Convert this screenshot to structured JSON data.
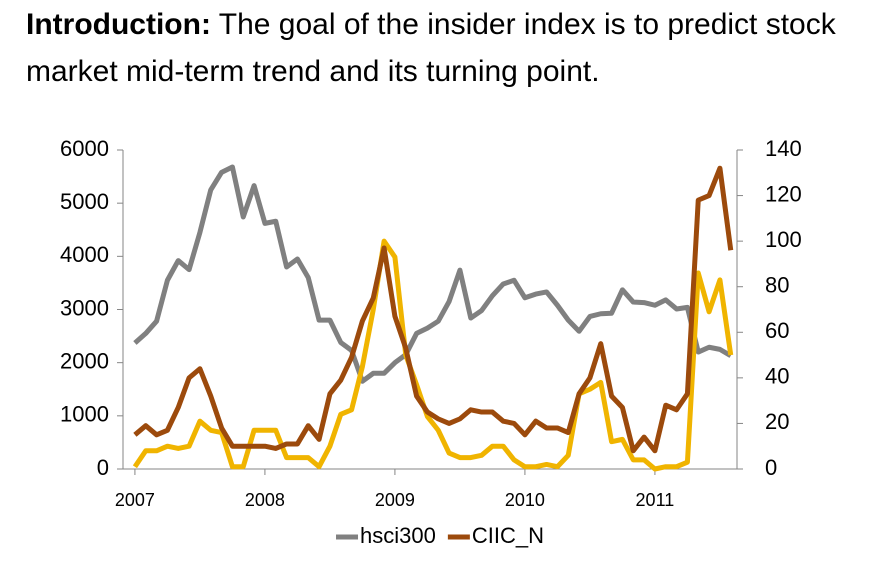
{
  "heading": {
    "label": "Introduction:",
    "text": "The goal of the insider index is to predict stock market mid-term trend and its turning point."
  },
  "chart_data": {
    "type": "line",
    "categories": [
      "2007",
      null,
      null,
      null,
      null,
      null,
      null,
      null,
      null,
      null,
      null,
      null,
      "2008",
      null,
      null,
      null,
      null,
      null,
      null,
      null,
      null,
      null,
      null,
      null,
      "2009",
      null,
      null,
      null,
      null,
      null,
      null,
      null,
      null,
      null,
      null,
      null,
      "2010",
      null,
      null,
      null,
      null,
      null,
      null,
      null,
      null,
      null,
      null,
      null,
      "2011",
      null,
      null,
      null,
      null,
      null,
      null,
      null
    ],
    "series": [
      {
        "name": "hsci300",
        "color": "#808080",
        "axis": "y",
        "legend": true,
        "values": [
          2370,
          2550,
          2780,
          3550,
          3920,
          3750,
          4450,
          5250,
          5580,
          5680,
          4740,
          5330,
          4620,
          4660,
          3800,
          3950,
          3600,
          2800,
          2800,
          2380,
          2230,
          1650,
          1800,
          1800,
          2000,
          2150,
          2550,
          2650,
          2780,
          3150,
          3740,
          2840,
          2980,
          3260,
          3480,
          3550,
          3220,
          3290,
          3330,
          3080,
          2800,
          2590,
          2870,
          2920,
          2930,
          3370,
          3140,
          3130,
          3080,
          3180,
          3010,
          3040,
          2200,
          2290,
          2250,
          2130
        ]
      },
      {
        "color": "#f0b400",
        "axis": "y2",
        "legend": false,
        "values": [
          1,
          8,
          8,
          10,
          9,
          10,
          21,
          17,
          16,
          1,
          1,
          17,
          17,
          17,
          5,
          5,
          5,
          1,
          10,
          24,
          26,
          45,
          70,
          100,
          93,
          50,
          37,
          23,
          17,
          7,
          5,
          5,
          6,
          10,
          10,
          4,
          1,
          1,
          2,
          1,
          6,
          33,
          35,
          38,
          12,
          13,
          4,
          4,
          0,
          1,
          1,
          3,
          86,
          69,
          83,
          50
        ]
      },
      {
        "name": "CIIC_N",
        "color": "#9c4a0c",
        "axis": "y2",
        "legend": true,
        "values": [
          15,
          19,
          15,
          17,
          27,
          40,
          44,
          32,
          18,
          10,
          10,
          10,
          10,
          9,
          11,
          11,
          19,
          13,
          33,
          39,
          49,
          65,
          75,
          97,
          67,
          53,
          32,
          25,
          22,
          20,
          22,
          26,
          25,
          25,
          21,
          20,
          15,
          21,
          18,
          18,
          16,
          33,
          40,
          55,
          32,
          27,
          8,
          14,
          8,
          28,
          26,
          33,
          118,
          120,
          132,
          96
        ]
      }
    ],
    "ylim": [
      0,
      6000
    ],
    "yticks": [
      0,
      1000,
      2000,
      3000,
      4000,
      5000,
      6000
    ],
    "y2lim": [
      0,
      140
    ],
    "y2ticks": [
      0,
      20,
      40,
      60,
      80,
      100,
      120,
      140
    ],
    "grid": false,
    "legend": "bottom"
  }
}
